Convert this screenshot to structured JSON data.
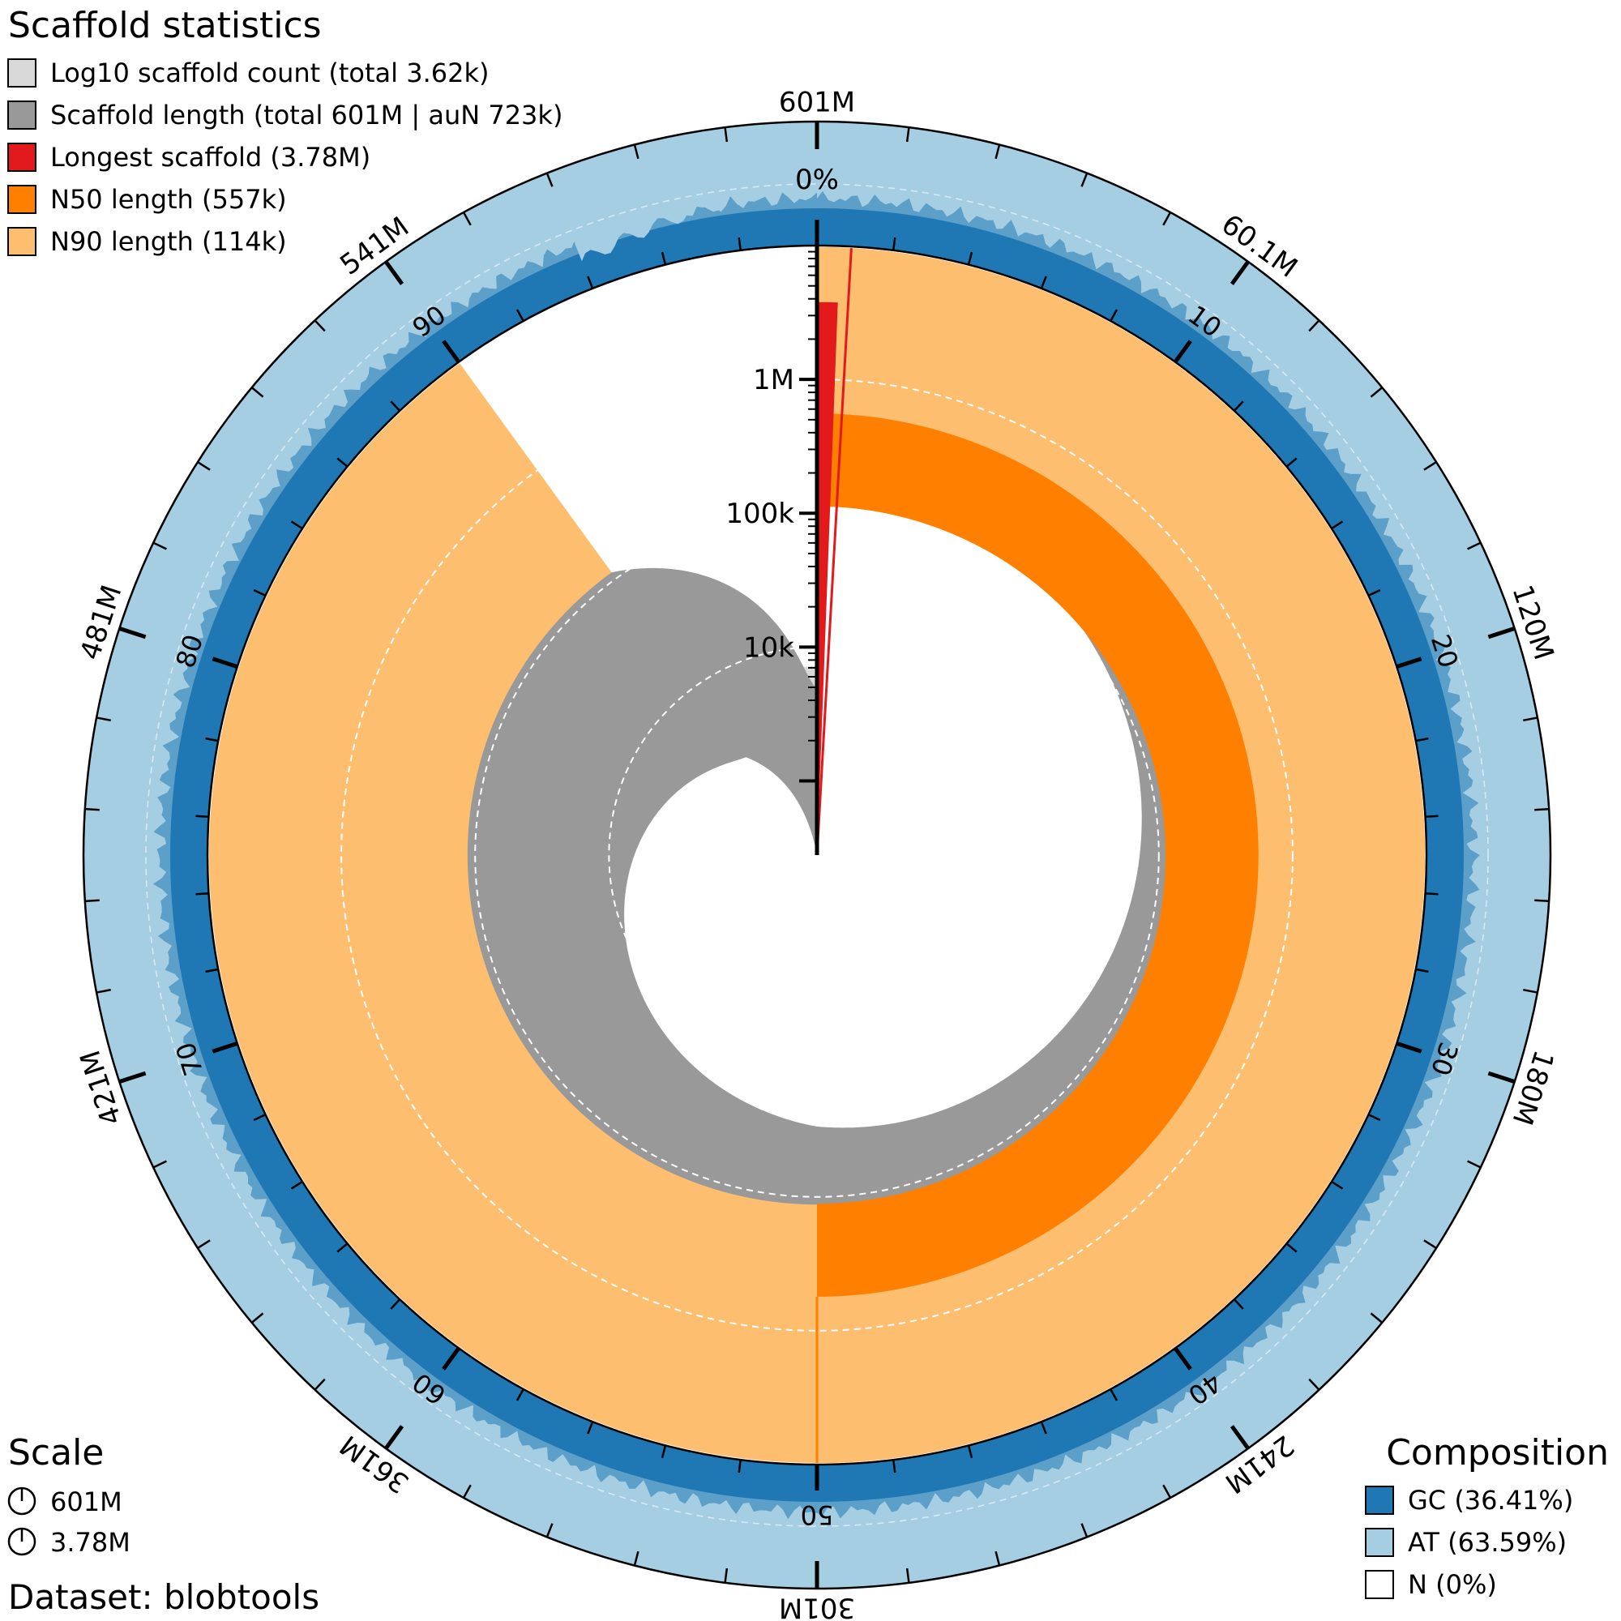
{
  "chart_data": {
    "type": "snail",
    "title": "Scaffold statistics",
    "legend": [
      {
        "label": "Log10 scaffold count (total 3.62k)",
        "color": "#d9d9d9"
      },
      {
        "label": "Scaffold length (total 601M | auN 723k)",
        "color": "#999999"
      },
      {
        "label": "Longest scaffold (3.78M)",
        "color": "#e31a1c"
      },
      {
        "label": "N50 length (557k)",
        "color": "#ff7f00"
      },
      {
        "label": "N90 length (114k)",
        "color": "#fdbf6f"
      }
    ],
    "stats": {
      "scaffold_count": 3620,
      "total_length": 601000000,
      "auN": 723000,
      "longest": 3780000,
      "n50": 557000,
      "n90": 114000,
      "n50_percent": 50,
      "n90_percent": 90
    },
    "outer_ticks": [
      "601M",
      "60.1M",
      "120M",
      "180M",
      "241M",
      "301M",
      "361M",
      "421M",
      "481M",
      "541M"
    ],
    "percent_ticks": [
      "10",
      "20",
      "30",
      "40",
      "50",
      "60",
      "70",
      "80",
      "90"
    ],
    "radial_ticks": [
      "10k",
      "100k",
      "1M"
    ],
    "top_percent_label": "0%",
    "composition": {
      "title": "Composition",
      "items": [
        {
          "label": "GC (36.41%)",
          "color": "#1f78b4"
        },
        {
          "label": "AT (63.59%)",
          "color": "#a6cee3"
        },
        {
          "label": "N (0%)",
          "color": "#ffffff"
        }
      ],
      "gc_percent": 36.41,
      "at_percent": 63.59,
      "n_percent": 0
    },
    "scale": {
      "title": "Scale",
      "items": [
        "601M",
        "3.78M"
      ]
    },
    "dataset": "Dataset: blobtools"
  }
}
